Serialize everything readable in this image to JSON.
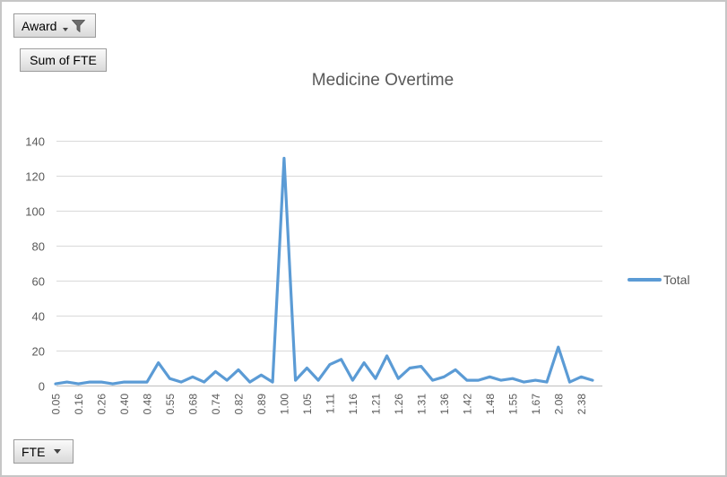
{
  "window": {
    "background": "#ffffff",
    "border_color": "#c6c6c6"
  },
  "pivot_buttons": {
    "filter_field": {
      "label": "Award",
      "icons": [
        "dropdown-arrow",
        "filter-funnel"
      ]
    },
    "value_field": {
      "label": "Sum of FTE"
    },
    "axis_field": {
      "label": "FTE",
      "icons": [
        "dropdown-arrow"
      ]
    }
  },
  "chart_data": {
    "type": "line",
    "title": "Medicine Overtime",
    "title_color": "#595959",
    "grid": true,
    "gridline_color": "#d9d9d9",
    "axis_line_color": "#bfbfbf",
    "axis_label_color": "#595959",
    "ylim": [
      0,
      140
    ],
    "y_ticks": [
      0,
      20,
      40,
      60,
      80,
      100,
      120,
      140
    ],
    "x_tick_labels": [
      "0.05",
      "0.16",
      "0.26",
      "0.40",
      "0.48",
      "0.55",
      "0.68",
      "0.74",
      "0.82",
      "0.89",
      "1.00",
      "1.05",
      "1.11",
      "1.16",
      "1.21",
      "1.26",
      "1.31",
      "1.36",
      "1.42",
      "1.48",
      "1.55",
      "1.67",
      "2.08",
      "2.38"
    ],
    "x_label_interval": 2,
    "legend_position": "right",
    "legend": {
      "entries": [
        {
          "label": "Total",
          "color": "#5b9bd5"
        }
      ]
    },
    "series": [
      {
        "name": "Total",
        "color": "#5b9bd5",
        "values": [
          1,
          2,
          1,
          2,
          2,
          1,
          2,
          2,
          2,
          13,
          4,
          2,
          5,
          2,
          8,
          3,
          9,
          2,
          6,
          2,
          130,
          3,
          10,
          3,
          12,
          15,
          3,
          13,
          4,
          17,
          4,
          10,
          11,
          3,
          5,
          9,
          3,
          3,
          5,
          3,
          4,
          2,
          3,
          2,
          22,
          2,
          5,
          3
        ]
      }
    ]
  }
}
